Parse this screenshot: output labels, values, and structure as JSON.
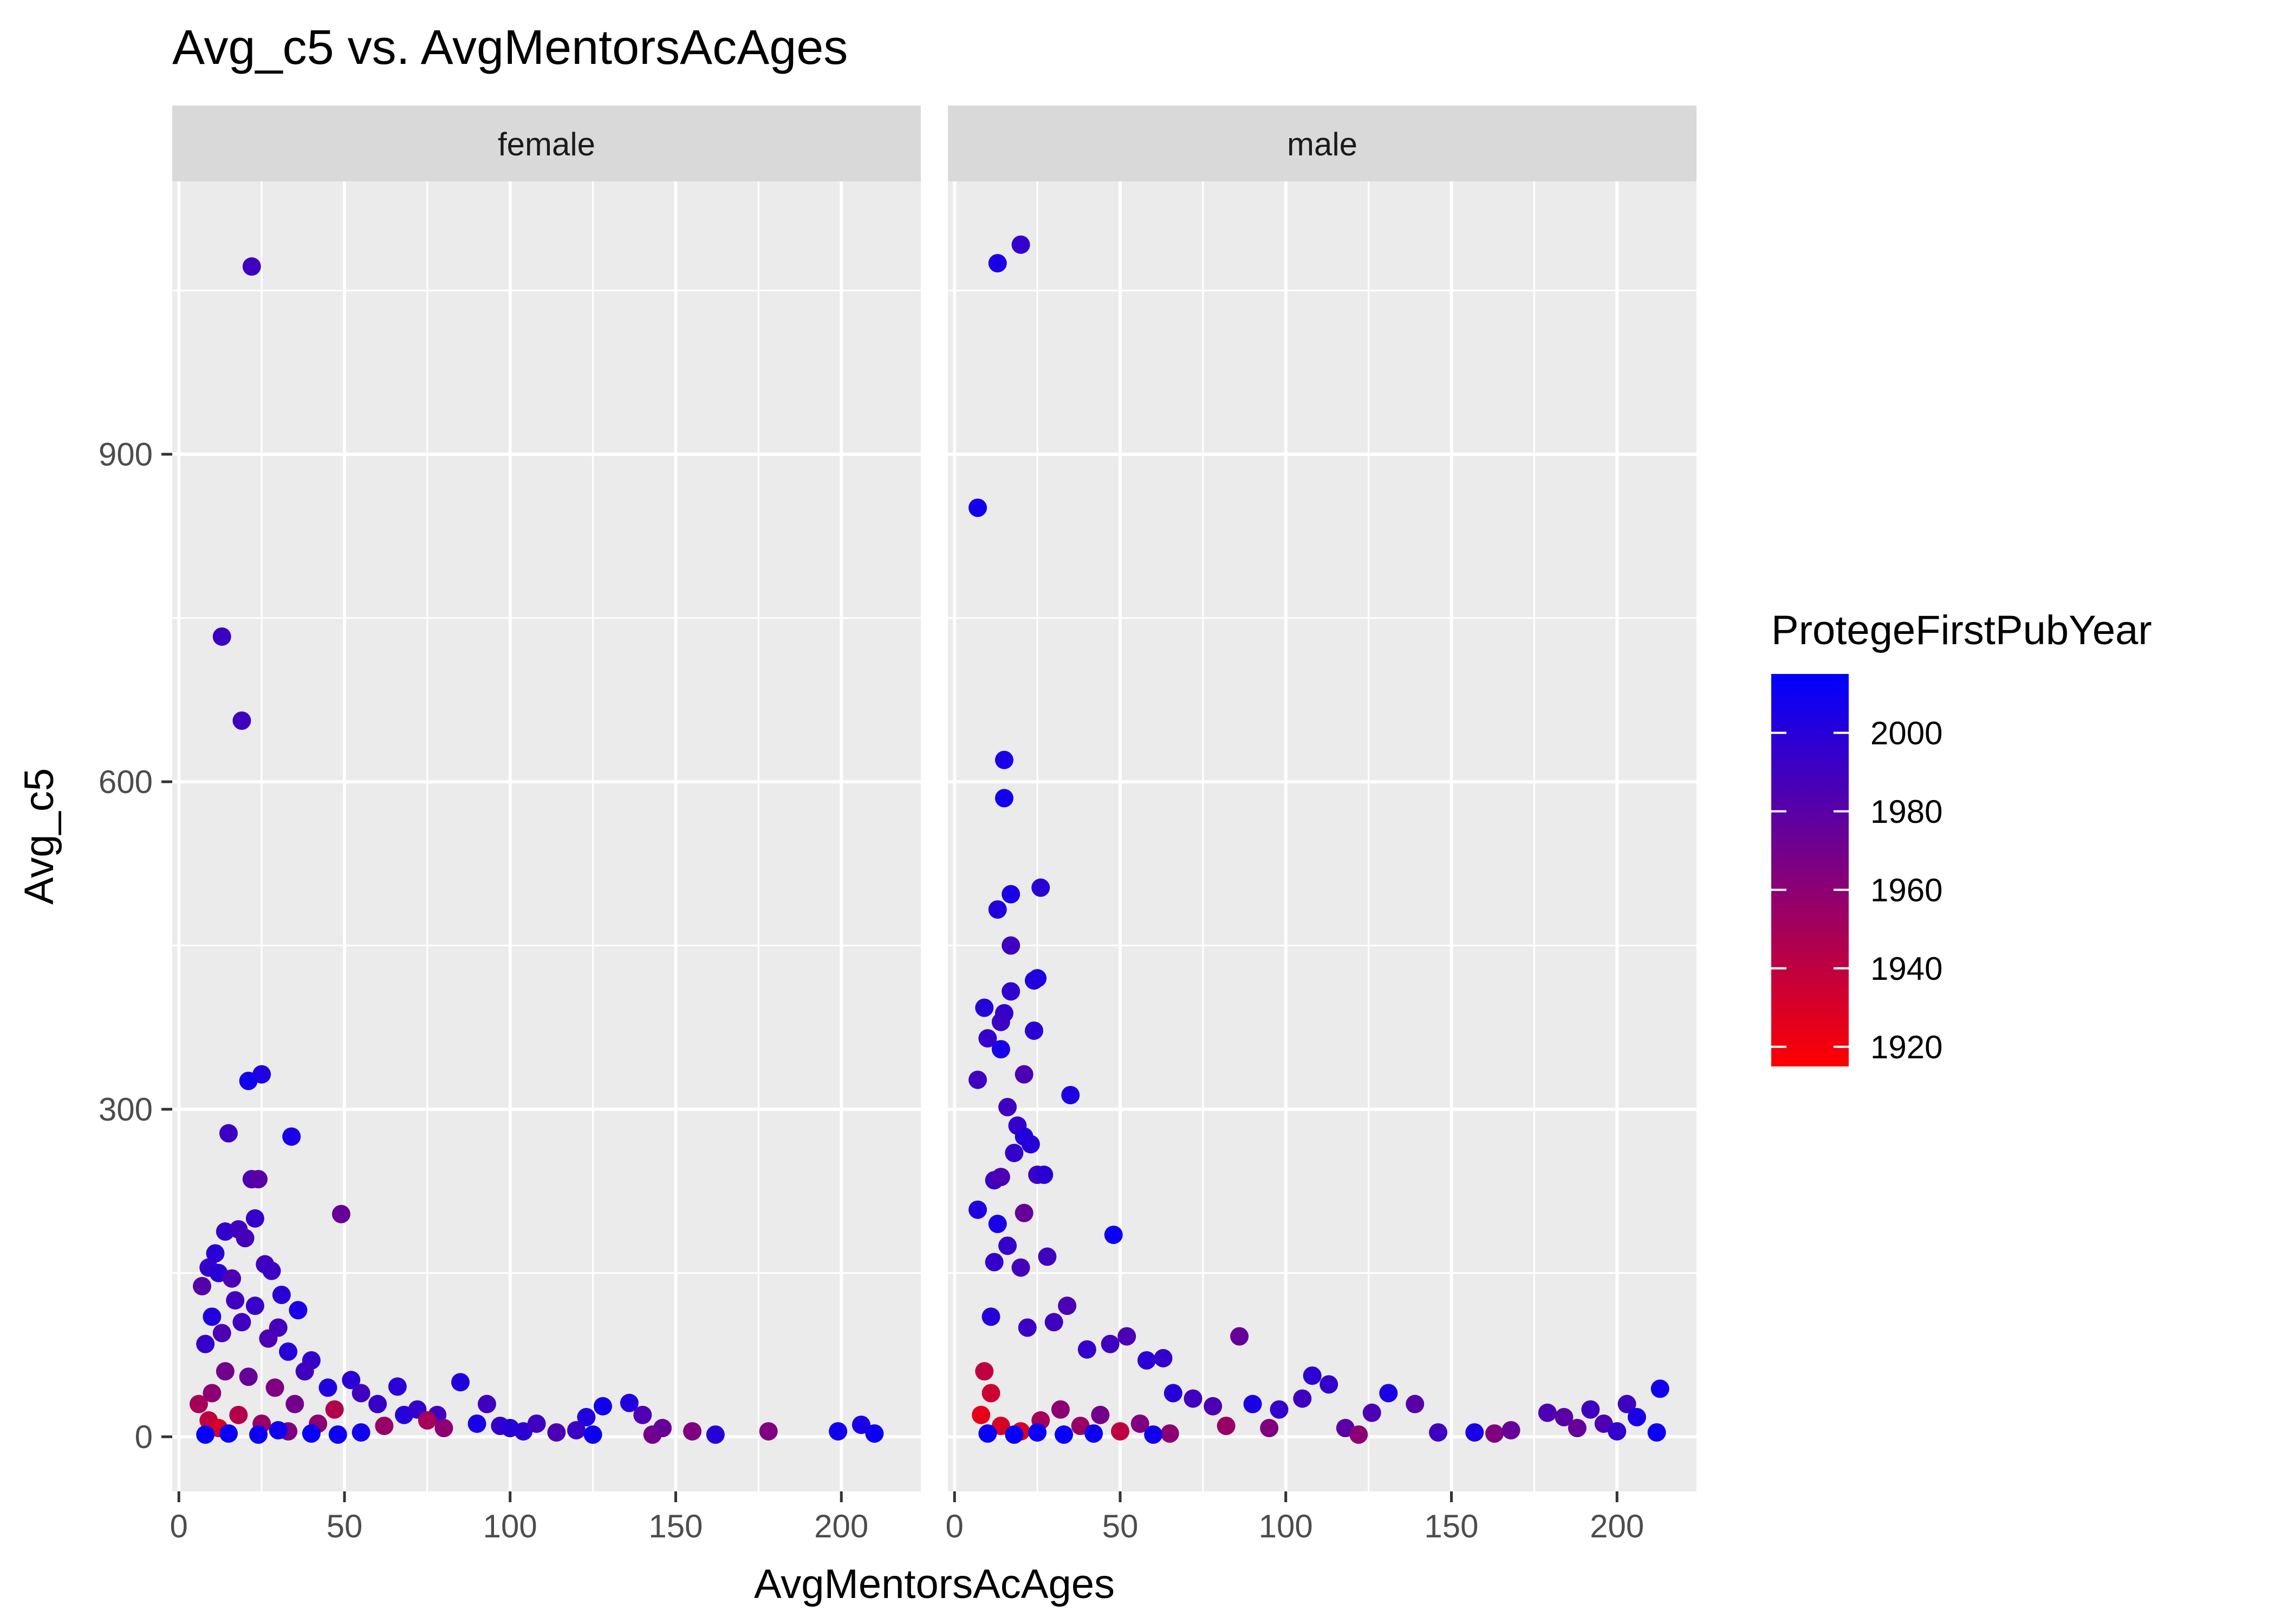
{
  "chart_data": {
    "type": "scatter",
    "title": "Avg_c5 vs. AvgMentorsAcAges",
    "xlabel": "AvgMentorsAcAges",
    "ylabel": "Avg_c5",
    "xlim": [
      -2,
      224
    ],
    "ylim": [
      -50,
      1150
    ],
    "x_ticks": [
      0,
      50,
      100,
      150,
      200
    ],
    "y_ticks": [
      0,
      300,
      600,
      900
    ],
    "grid": true,
    "facet_by": "gender",
    "legend": {
      "title": "ProtegeFirstPubYear",
      "position": "right",
      "type": "colorbar",
      "range": [
        1915,
        2015
      ],
      "ticks": [
        1920,
        1940,
        1960,
        1980,
        2000
      ],
      "low_color": "#ff0000",
      "high_color": "#0000ff"
    },
    "facets": [
      {
        "label": "female",
        "points": [
          [
            22,
            1072,
            1990
          ],
          [
            13,
            733,
            1992
          ],
          [
            19,
            656,
            1990
          ],
          [
            25,
            332,
            2003
          ],
          [
            21,
            326,
            2008
          ],
          [
            15,
            278,
            1992
          ],
          [
            34,
            275,
            2005
          ],
          [
            22,
            236,
            1985
          ],
          [
            24,
            236,
            1980
          ],
          [
            49,
            204,
            1975
          ],
          [
            23,
            200,
            1995
          ],
          [
            14,
            188,
            1996
          ],
          [
            18,
            190,
            1990
          ],
          [
            20,
            182,
            1988
          ],
          [
            11,
            168,
            1999
          ],
          [
            26,
            158,
            1990
          ],
          [
            9,
            155,
            1995
          ],
          [
            12,
            150,
            2000
          ],
          [
            16,
            145,
            1985
          ],
          [
            7,
            138,
            1982
          ],
          [
            28,
            152,
            1992
          ],
          [
            31,
            130,
            1998
          ],
          [
            36,
            116,
            2005
          ],
          [
            17,
            125,
            1990
          ],
          [
            10,
            110,
            2002
          ],
          [
            23,
            120,
            1994
          ],
          [
            30,
            100,
            1989
          ],
          [
            13,
            95,
            1985
          ],
          [
            19,
            105,
            1990
          ],
          [
            8,
            85,
            1995
          ],
          [
            27,
            90,
            1985
          ],
          [
            33,
            78,
            2000
          ],
          [
            40,
            70,
            1995
          ],
          [
            38,
            60,
            1990
          ],
          [
            45,
            45,
            2002
          ],
          [
            52,
            52,
            1998
          ],
          [
            55,
            40,
            1990
          ],
          [
            60,
            30,
            1994
          ],
          [
            66,
            46,
            1998
          ],
          [
            68,
            20,
            2000
          ],
          [
            72,
            25,
            1995
          ],
          [
            78,
            20,
            1990
          ],
          [
            85,
            50,
            2002
          ],
          [
            90,
            12,
            2005
          ],
          [
            93,
            30,
            1990
          ],
          [
            97,
            10,
            1995
          ],
          [
            100,
            8,
            2000
          ],
          [
            104,
            5,
            1998
          ],
          [
            108,
            12,
            1990
          ],
          [
            114,
            4,
            1985
          ],
          [
            120,
            6,
            1992
          ],
          [
            123,
            18,
            2002
          ],
          [
            125,
            2,
            2010
          ],
          [
            128,
            28,
            2008
          ],
          [
            136,
            31,
            2003
          ],
          [
            140,
            20,
            1985
          ],
          [
            143,
            2,
            1970
          ],
          [
            146,
            8,
            1975
          ],
          [
            155,
            5,
            1965
          ],
          [
            162,
            2,
            2000
          ],
          [
            178,
            5,
            1965
          ],
          [
            199,
            5,
            2008
          ],
          [
            206,
            11,
            2005
          ],
          [
            210,
            3,
            2010
          ],
          [
            80,
            8,
            1960
          ],
          [
            75,
            15,
            1950
          ],
          [
            62,
            10,
            1955
          ],
          [
            47,
            25,
            1945
          ],
          [
            42,
            12,
            1960
          ],
          [
            35,
            30,
            1970
          ],
          [
            29,
            45,
            1965
          ],
          [
            21,
            55,
            1975
          ],
          [
            14,
            60,
            1970
          ],
          [
            10,
            40,
            1960
          ],
          [
            6,
            30,
            1950
          ],
          [
            9,
            15,
            1940
          ],
          [
            12,
            8,
            1930
          ],
          [
            18,
            20,
            1945
          ],
          [
            25,
            12,
            1955
          ],
          [
            33,
            5,
            1965
          ],
          [
            40,
            3,
            2012
          ],
          [
            48,
            2,
            2010
          ],
          [
            55,
            4,
            2008
          ],
          [
            15,
            3,
            2012
          ],
          [
            24,
            2,
            2011
          ],
          [
            30,
            6,
            2009
          ],
          [
            8,
            2,
            2013
          ]
        ]
      },
      {
        "label": "male",
        "points": [
          [
            20,
            1092,
            1995
          ],
          [
            13,
            1075,
            2005
          ],
          [
            7,
            851,
            2008
          ],
          [
            15,
            620,
            2005
          ],
          [
            15,
            585,
            2008
          ],
          [
            17,
            497,
            2005
          ],
          [
            26,
            503,
            1998
          ],
          [
            13,
            483,
            2002
          ],
          [
            17,
            450,
            1990
          ],
          [
            25,
            420,
            2005
          ],
          [
            24,
            418,
            2002
          ],
          [
            17,
            408,
            1996
          ],
          [
            9,
            393,
            2000
          ],
          [
            15,
            388,
            1995
          ],
          [
            14,
            380,
            1992
          ],
          [
            10,
            365,
            1995
          ],
          [
            14,
            355,
            2005
          ],
          [
            24,
            372,
            1998
          ],
          [
            7,
            327,
            1990
          ],
          [
            21,
            332,
            1985
          ],
          [
            35,
            313,
            2003
          ],
          [
            16,
            302,
            1990
          ],
          [
            19,
            285,
            1995
          ],
          [
            21,
            275,
            2002
          ],
          [
            23,
            268,
            2000
          ],
          [
            18,
            260,
            1995
          ],
          [
            25,
            240,
            1990
          ],
          [
            27,
            240,
            1998
          ],
          [
            12,
            235,
            1992
          ],
          [
            14,
            238,
            1985
          ],
          [
            21,
            205,
            1975
          ],
          [
            7,
            208,
            2002
          ],
          [
            13,
            195,
            2005
          ],
          [
            16,
            175,
            1995
          ],
          [
            48,
            185,
            2010
          ],
          [
            28,
            165,
            1990
          ],
          [
            12,
            160,
            1995
          ],
          [
            20,
            155,
            1988
          ],
          [
            34,
            120,
            1985
          ],
          [
            30,
            105,
            1990
          ],
          [
            11,
            110,
            2000
          ],
          [
            22,
            100,
            1992
          ],
          [
            40,
            80,
            1995
          ],
          [
            47,
            85,
            1990
          ],
          [
            52,
            92,
            1985
          ],
          [
            58,
            70,
            1998
          ],
          [
            63,
            72,
            1995
          ],
          [
            66,
            40,
            2000
          ],
          [
            72,
            35,
            1990
          ],
          [
            78,
            28,
            1985
          ],
          [
            86,
            92,
            1975
          ],
          [
            90,
            30,
            2005
          ],
          [
            98,
            25,
            1995
          ],
          [
            105,
            35,
            1990
          ],
          [
            108,
            56,
            1998
          ],
          [
            113,
            48,
            1995
          ],
          [
            118,
            8,
            1980
          ],
          [
            122,
            2,
            1960
          ],
          [
            126,
            22,
            1985
          ],
          [
            131,
            40,
            2005
          ],
          [
            139,
            30,
            1980
          ],
          [
            146,
            4,
            1990
          ],
          [
            157,
            4,
            2005
          ],
          [
            163,
            3,
            1965
          ],
          [
            168,
            6,
            1975
          ],
          [
            179,
            22,
            1985
          ],
          [
            184,
            18,
            1980
          ],
          [
            188,
            8,
            1975
          ],
          [
            192,
            25,
            1990
          ],
          [
            196,
            12,
            1985
          ],
          [
            200,
            5,
            1995
          ],
          [
            203,
            30,
            1990
          ],
          [
            206,
            18,
            2005
          ],
          [
            213,
            44,
            2008
          ],
          [
            212,
            4,
            2010
          ],
          [
            9,
            60,
            1940
          ],
          [
            11,
            40,
            1935
          ],
          [
            8,
            20,
            1925
          ],
          [
            14,
            10,
            1930
          ],
          [
            20,
            5,
            1930
          ],
          [
            26,
            15,
            1950
          ],
          [
            32,
            25,
            1960
          ],
          [
            38,
            10,
            1955
          ],
          [
            44,
            20,
            1970
          ],
          [
            50,
            5,
            1940
          ],
          [
            56,
            12,
            1965
          ],
          [
            65,
            3,
            1960
          ],
          [
            82,
            10,
            1955
          ],
          [
            95,
            8,
            1965
          ],
          [
            10,
            3,
            2012
          ],
          [
            18,
            2,
            2013
          ],
          [
            25,
            4,
            2011
          ],
          [
            33,
            2,
            2012
          ],
          [
            42,
            3,
            2010
          ],
          [
            60,
            2,
            2008
          ]
        ]
      }
    ]
  }
}
